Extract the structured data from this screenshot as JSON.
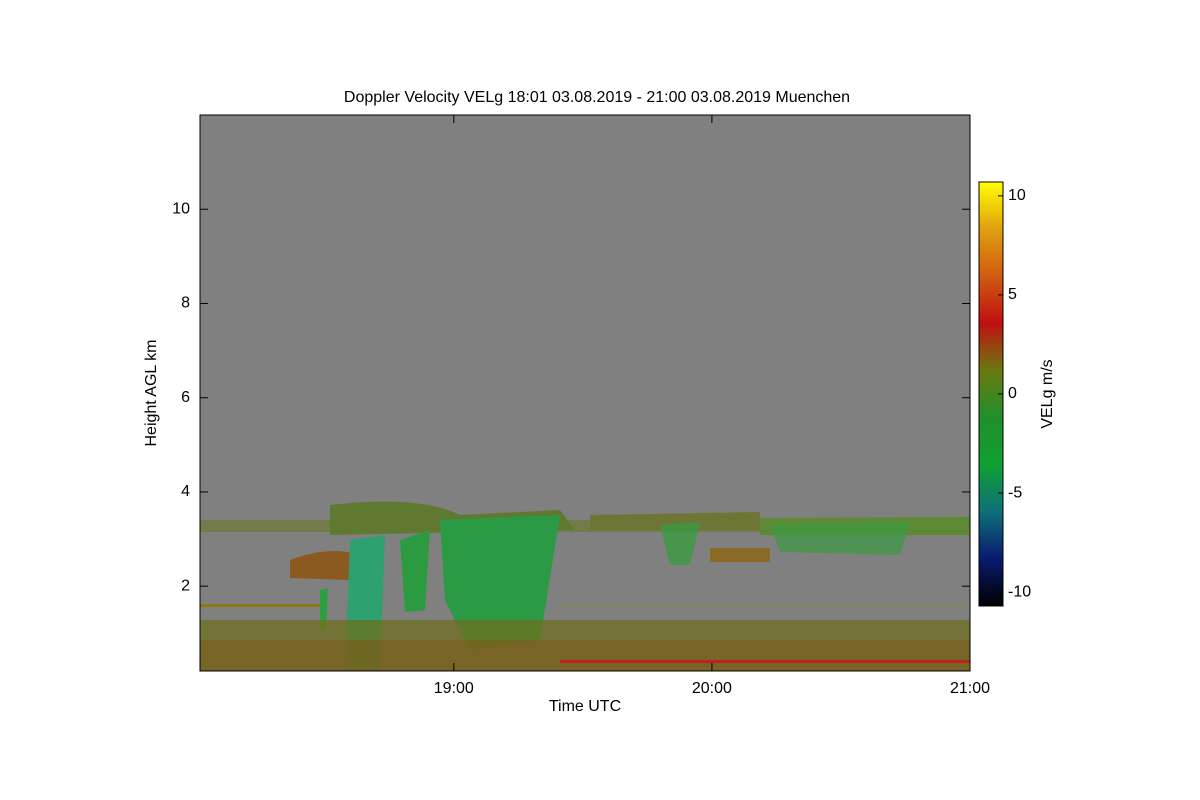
{
  "chart_data": {
    "type": "heatmap",
    "title": "Doppler Velocity VELg   18:01 03.08.2019 - 21:00 03.08.2019 Muenchen",
    "x_label": "Time UTC",
    "y_label": "Height AGL km",
    "xlim": [
      1081,
      1260
    ],
    "xticks": [
      {
        "value": 1140,
        "label": "19:00"
      },
      {
        "value": 1200,
        "label": "20:00"
      },
      {
        "value": 1260,
        "label": "21:00"
      }
    ],
    "ylim": [
      0.2,
      12.0
    ],
    "yticks": [
      2,
      4,
      6,
      8,
      10
    ],
    "colorbar": {
      "label": "VELg m/s",
      "clim": [
        -10.7,
        10.7
      ],
      "ticks": [
        -10,
        -5,
        0,
        5,
        10
      ],
      "colormap": [
        "#000000",
        "#0a1a6e",
        "#0e6f7a",
        "#10a030",
        "#1f8f2a",
        "#6a7a10",
        "#c01010",
        "#d05a10",
        "#e0a010",
        "#ffff00"
      ]
    },
    "background_color": "#808080"
  }
}
